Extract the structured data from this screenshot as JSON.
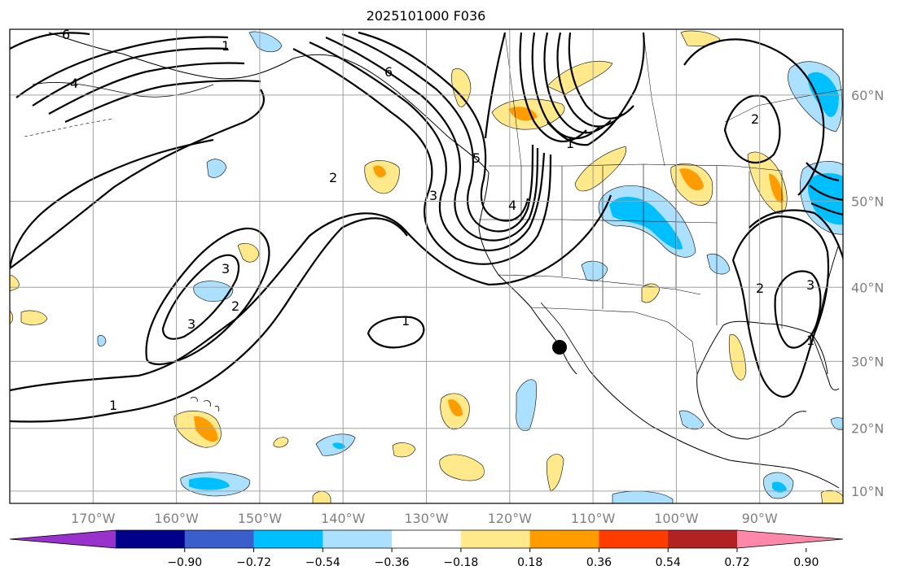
{
  "title": "2025101000 F036",
  "map": {
    "lat_labels": [
      {
        "lat": 60,
        "text": "60°N"
      },
      {
        "lat": 50,
        "text": "50°N"
      },
      {
        "lat": 40,
        "text": "40°N"
      },
      {
        "lat": 30,
        "text": "30°N"
      },
      {
        "lat": 20,
        "text": "20°N"
      },
      {
        "lat": 10,
        "text": "10°N"
      }
    ],
    "lon_labels": [
      {
        "lon": -170,
        "text": "170°W"
      },
      {
        "lon": -160,
        "text": "160°W"
      },
      {
        "lon": -150,
        "text": "150°W"
      },
      {
        "lon": -140,
        "text": "140°W"
      },
      {
        "lon": -130,
        "text": "130°W"
      },
      {
        "lon": -120,
        "text": "120°W"
      },
      {
        "lon": -110,
        "text": "110°W"
      },
      {
        "lon": -100,
        "text": "100°W"
      },
      {
        "lon": -90,
        "text": "90°W"
      }
    ],
    "lon_range": [
      -180,
      -80
    ],
    "lat_range": [
      8,
      65
    ],
    "contour_labels": [
      "1",
      "2",
      "3",
      "4",
      "5",
      "6"
    ],
    "colors": {
      "shade_pos_1": "#ffe98a",
      "shade_pos_2": "#ff9d00",
      "shade_neg_1": "#abe0ff",
      "shade_neg_2": "#00bfff",
      "contour": "#000000",
      "grid": "#a0a0a0"
    }
  },
  "colorbar": {
    "levels": [
      "−0.90",
      "−0.72",
      "−0.54",
      "−0.36",
      "−0.18",
      "0.18",
      "0.36",
      "0.54",
      "0.72",
      "0.90"
    ],
    "colors": [
      "#9932cc",
      "#00008b",
      "#3a5fcd",
      "#00bfff",
      "#abe0ff",
      "#ffffff",
      "#ffe98a",
      "#ff9d00",
      "#ff3c00",
      "#b22222",
      "#ff88aa"
    ]
  }
}
